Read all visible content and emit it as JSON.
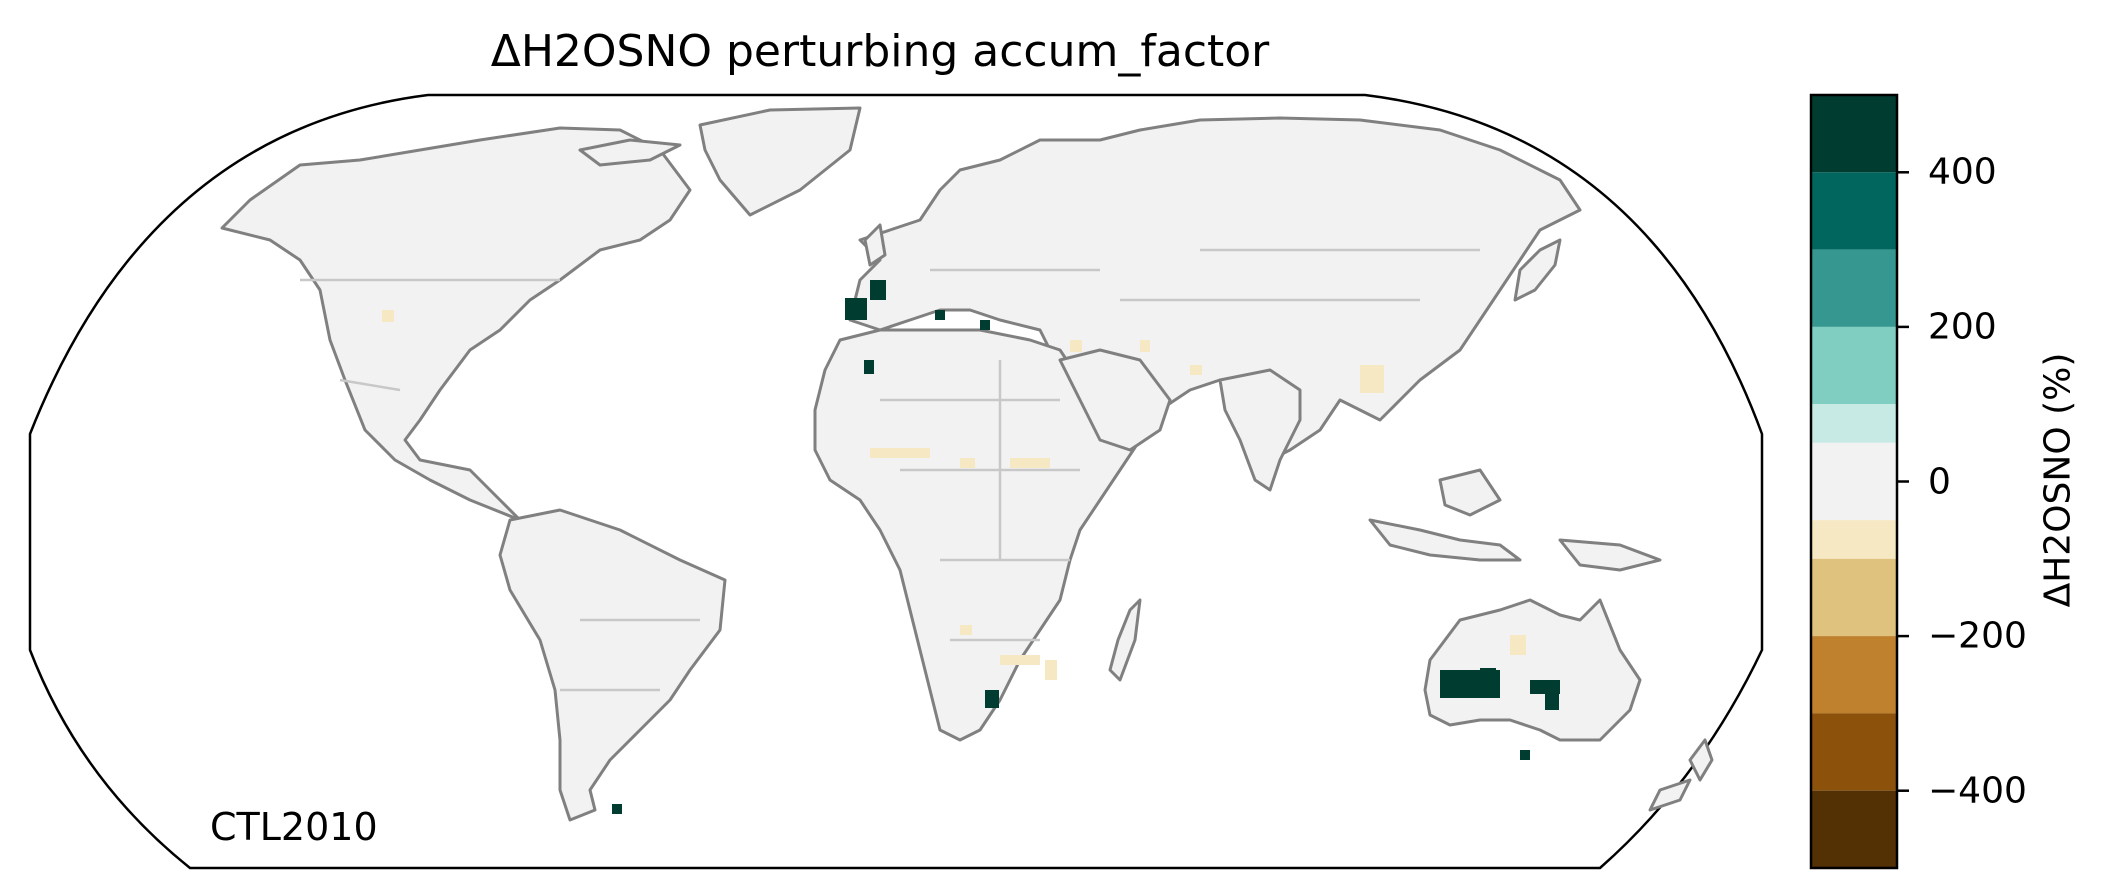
{
  "title": "ΔH2OSNO perturbing accum_factor",
  "panel_label": "CTL2010",
  "colorbar": {
    "label": "ΔH2OSNO (%)",
    "range": [
      -500,
      500
    ],
    "ticks": [
      {
        "value": 400,
        "label": "400"
      },
      {
        "value": 200,
        "label": "200"
      },
      {
        "value": 0,
        "label": "0"
      },
      {
        "value": -200,
        "label": "−200"
      },
      {
        "value": -400,
        "label": "−400"
      }
    ],
    "bins": [
      {
        "from": 400,
        "to": 500,
        "color": "#003c30"
      },
      {
        "from": 300,
        "to": 400,
        "color": "#01665e"
      },
      {
        "from": 200,
        "to": 300,
        "color": "#35978f"
      },
      {
        "from": 100,
        "to": 200,
        "color": "#80cdc1"
      },
      {
        "from": 50,
        "to": 100,
        "color": "#c7eae5"
      },
      {
        "from": -50,
        "to": 50,
        "color": "#f2f2f2"
      },
      {
        "from": -100,
        "to": -50,
        "color": "#f6e8c3"
      },
      {
        "from": -200,
        "to": -100,
        "color": "#dfc27d"
      },
      {
        "from": -300,
        "to": -200,
        "color": "#bf812d"
      },
      {
        "from": -400,
        "to": -300,
        "color": "#8c510a"
      },
      {
        "from": -500,
        "to": -400,
        "color": "#543005"
      }
    ]
  },
  "projection": "Robinson",
  "colors": {
    "coastline": "#808080",
    "borders": "#c8c8c8",
    "land_fill": "#f2f2f2",
    "frame": "#000000"
  }
}
